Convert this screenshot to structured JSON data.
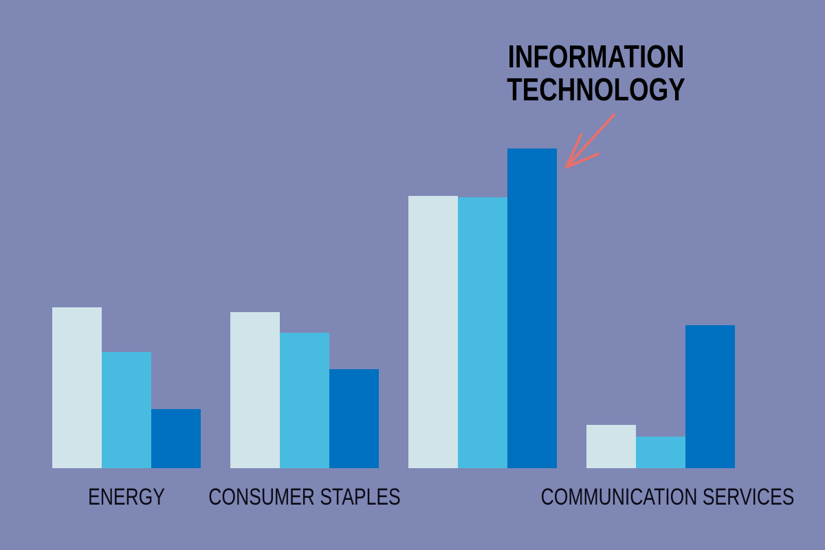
{
  "chart_data": {
    "type": "bar",
    "annotation": [
      "INFORMATION",
      "TECHNOLOGY"
    ],
    "categories": [
      "ENERGY",
      "CONSUMER STAPLES",
      null,
      "COMMUNICATION SERVICES"
    ],
    "series": [
      {
        "color": "#d0e4ea",
        "values": [
          23.4,
          22.7,
          39.6,
          6.3
        ]
      },
      {
        "color": "#48bce0",
        "values": [
          16.9,
          19.7,
          39.4,
          4.6
        ]
      },
      {
        "color": "#0070c0",
        "values": [
          8.6,
          14.4,
          46.5,
          20.8
        ]
      }
    ],
    "ylim": [
      0,
      50
    ]
  }
}
